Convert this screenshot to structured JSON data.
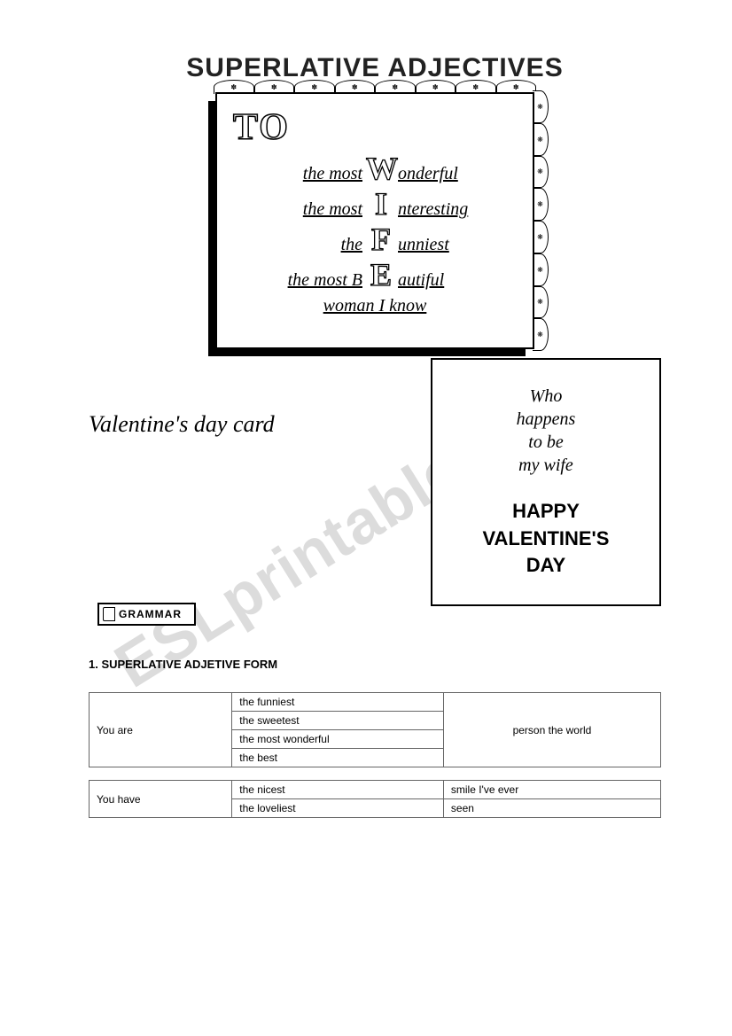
{
  "watermark": "ESLprintables.com",
  "title": "SUPERLATIVE ADJECTIVES",
  "card1": {
    "to": "TO",
    "rows": [
      {
        "left": "the most",
        "letter": "W",
        "right": "onderful"
      },
      {
        "left": "the most",
        "letter": "I",
        "right": "nteresting"
      },
      {
        "left": "the",
        "letter": "F",
        "right": "unniest"
      },
      {
        "left": "the most B",
        "letter": "E",
        "right": "autiful"
      }
    ],
    "bottom": "woman I know"
  },
  "card_label": "Valentine's day card",
  "card2": {
    "script_lines": [
      "Who",
      "happens",
      "to be",
      "my wife"
    ],
    "bold_lines": [
      "HAPPY",
      "VALENTINE'S",
      "DAY"
    ]
  },
  "grammar_label": "GRAMMAR",
  "section_heading": "1. SUPERLATIVE ADJETIVE FORM",
  "table1": {
    "left": "You are",
    "mids": [
      "the funniest",
      "the sweetest",
      "the most wonderful",
      "the best"
    ],
    "right": "person the world"
  },
  "table2": {
    "left": "You have",
    "mids": [
      "the nicest",
      "the loveliest"
    ],
    "rights": [
      "smile I've ever",
      "seen"
    ]
  },
  "colors": {
    "text": "#000000",
    "border": "#000000",
    "table_border": "#666666",
    "watermark": "#dcdcdc",
    "background": "#ffffff"
  }
}
